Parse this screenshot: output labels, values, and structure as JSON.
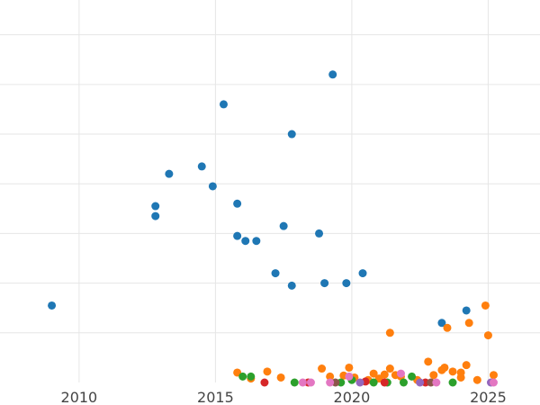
{
  "chart_data": {
    "type": "scatter",
    "title": "",
    "xlabel": "",
    "ylabel": "",
    "xlim": [
      2007.1,
      2026.9
    ],
    "ylim": [
      0,
      7.7
    ],
    "x_ticks": [
      2010,
      2015,
      2020,
      2025
    ],
    "x_tick_labels": [
      "2010",
      "2015",
      "2020",
      "2025"
    ],
    "y_gridlines": [
      1,
      2,
      3,
      4,
      5,
      6,
      7
    ],
    "grid": true,
    "legend": "none",
    "series": [
      {
        "color": "#1f77b4",
        "x": [
          2009.0,
          2012.8,
          2012.8,
          2013.3,
          2014.5,
          2014.9,
          2015.3,
          2015.8,
          2015.8,
          2016.1,
          2016.5,
          2017.2,
          2017.5,
          2017.8,
          2017.8,
          2018.8,
          2019.0,
          2019.3,
          2019.8,
          2020.4,
          2023.3,
          2024.2
        ],
        "y": [
          1.55,
          3.55,
          3.35,
          4.2,
          4.35,
          3.95,
          5.6,
          3.6,
          2.95,
          2.85,
          2.85,
          2.2,
          3.15,
          5.0,
          1.95,
          3.0,
          2.0,
          6.2,
          2.0,
          2.2,
          1.2,
          1.45
        ]
      },
      {
        "color": "#ff7f0e",
        "x": [
          2015.8,
          2016.3,
          2016.9,
          2017.4,
          2018.9,
          2019.2,
          2019.7,
          2019.9,
          2020.1,
          2020.6,
          2020.8,
          2021.0,
          2021.2,
          2021.4,
          2021.4,
          2021.8,
          2022.4,
          2022.8,
          2023.0,
          2023.4,
          2023.5,
          2023.7,
          2024.0,
          2024.2,
          2024.3,
          2024.6,
          2024.9,
          2025.0,
          2025.2,
          2023.3,
          2021.6,
          2024.0
        ],
        "y": [
          0.2,
          0.08,
          0.22,
          0.1,
          0.28,
          0.12,
          0.14,
          0.3,
          0.1,
          0.05,
          0.18,
          0.08,
          0.16,
          0.28,
          1.0,
          0.12,
          0.05,
          0.42,
          0.15,
          0.3,
          1.1,
          0.22,
          0.1,
          0.35,
          1.2,
          0.05,
          1.55,
          0.95,
          0.15,
          0.25,
          0.15,
          0.2
        ]
      },
      {
        "color": "#2ca02c",
        "x": [
          2016.0,
          2016.3,
          2017.9,
          2019.6,
          2020.0,
          2020.8,
          2021.3,
          2021.9,
          2022.2,
          2023.7
        ],
        "y": [
          0.12,
          0.12,
          0.0,
          0.0,
          0.05,
          0.0,
          0.0,
          0.0,
          0.12,
          0.0
        ]
      },
      {
        "color": "#d62728",
        "x": [
          2016.8,
          2018.4,
          2020.5,
          2021.2,
          2022.7
        ],
        "y": [
          0.0,
          0.0,
          0.02,
          0.0,
          0.0
        ]
      },
      {
        "color": "#9467bd",
        "x": [
          2020.3,
          2022.5,
          2025.1
        ],
        "y": [
          0.0,
          0.0,
          0.0
        ]
      },
      {
        "color": "#8c564b",
        "x": [
          2019.4,
          2022.9
        ],
        "y": [
          0.0,
          0.0
        ]
      },
      {
        "color": "#e377c2",
        "x": [
          2018.2,
          2018.5,
          2019.2,
          2019.9,
          2021.8,
          2023.1,
          2025.2
        ],
        "y": [
          0.0,
          0.0,
          0.0,
          0.12,
          0.18,
          0.0,
          0.0
        ]
      }
    ]
  }
}
